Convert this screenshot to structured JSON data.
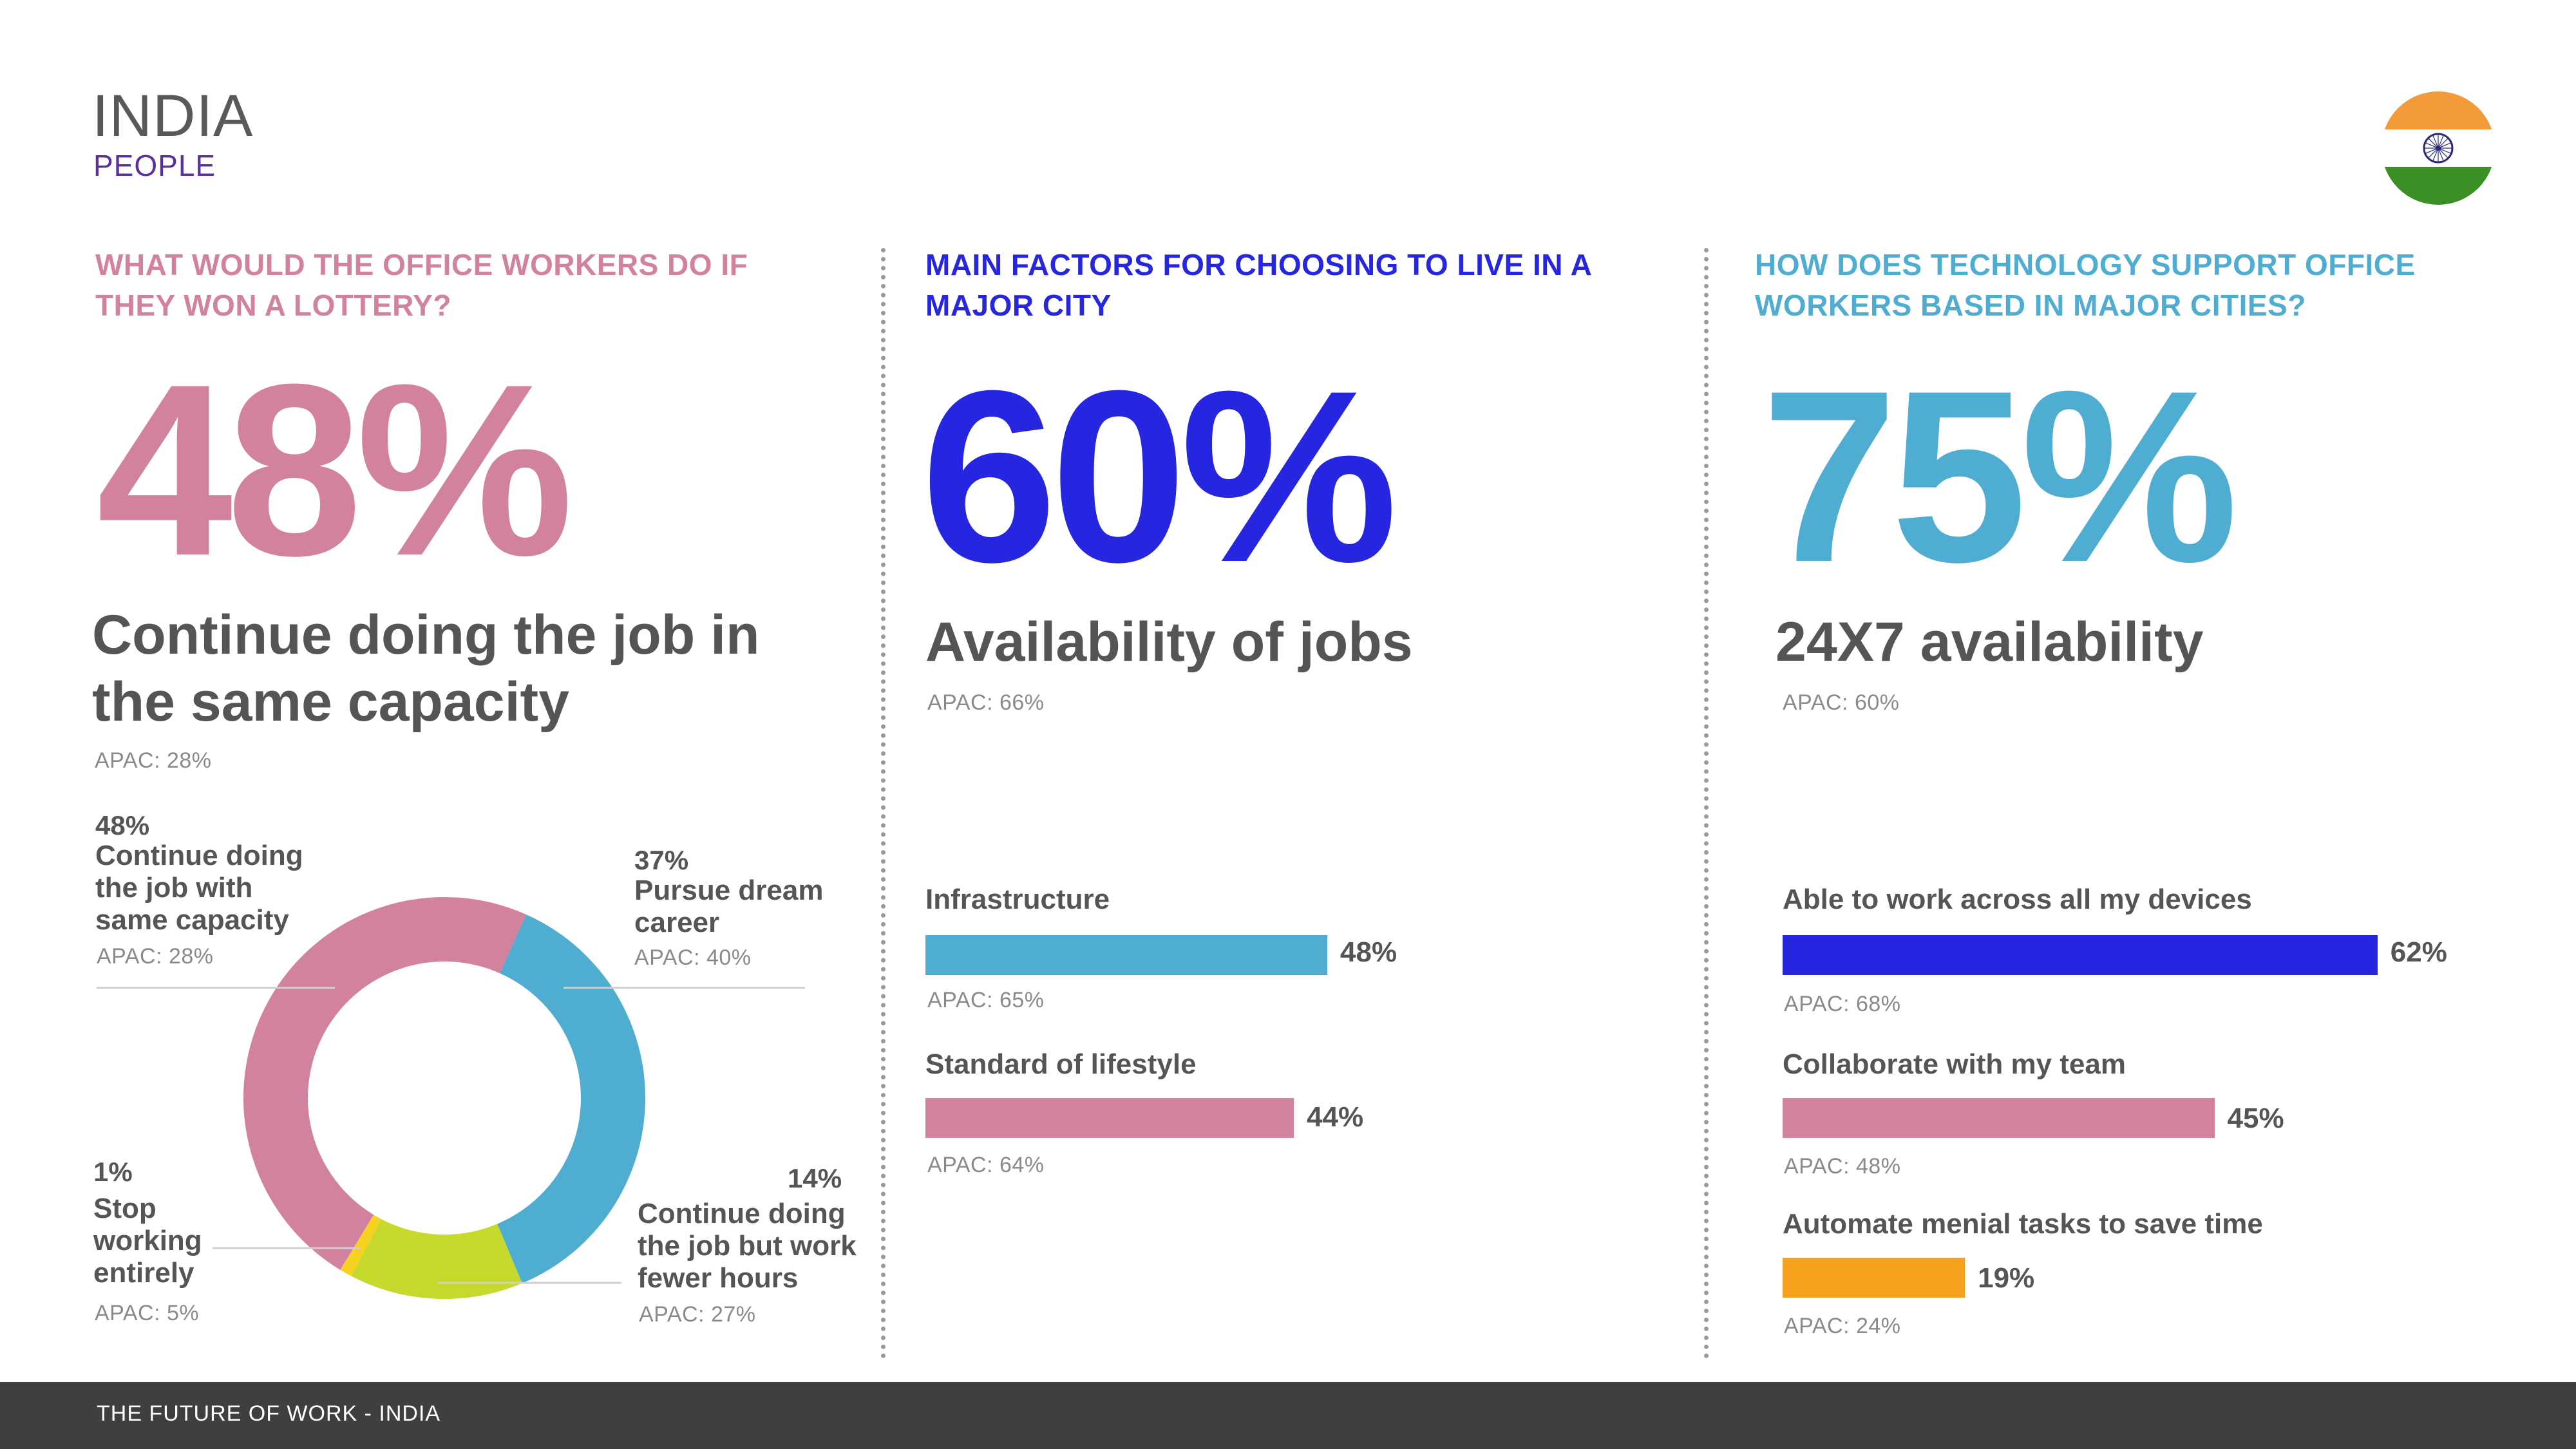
{
  "header": {
    "country": "INDIA",
    "section": "PEOPLE"
  },
  "footer": {
    "text": "THE FUTURE OF WORK - INDIA"
  },
  "colors": {
    "pink": "#d2829e",
    "blue": "#2626e0",
    "light_blue": "#4fadd2",
    "lime": "#c8d92e",
    "yellow": "#f5d21f",
    "orange": "#f7a21e",
    "flag_saffron": "#f39a3b",
    "flag_green": "#3a8f25",
    "flag_chakra": "#2a2a7a"
  },
  "panels": {
    "lottery": {
      "question": "WHAT WOULD THE OFFICE WORKERS DO IF THEY WON A LOTTERY?",
      "big_value": "48%",
      "headline": "Continue doing the job in the same capacity",
      "apac": "APAC: 28%"
    },
    "city": {
      "question": "MAIN FACTORS FOR CHOOSING TO LIVE IN A MAJOR CITY",
      "big_value": "60%",
      "headline": "Availability of jobs",
      "apac": "APAC: 66%"
    },
    "tech": {
      "question": "HOW DOES TECHNOLOGY SUPPORT OFFICE WORKERS BASED IN MAJOR CITIES?",
      "big_value": "75%",
      "headline": "24X7 availability",
      "apac": "APAC: 60%"
    }
  },
  "chart_data": [
    {
      "type": "pie",
      "title": "What would the office workers do if they won a lottery?",
      "slices": [
        {
          "label": "Pursue dream career",
          "value": 37,
          "pct_label": "37%",
          "apac": "APAC: 40%",
          "color": "#4fadd2"
        },
        {
          "label": "Continue doing the job but work fewer hours",
          "value": 14,
          "pct_label": "14%",
          "apac": "APAC: 27%",
          "color": "#c8d92e"
        },
        {
          "label": "Stop working entirely",
          "value": 1,
          "pct_label": "1%",
          "apac": "APAC: 5%",
          "color": "#f5d21f"
        },
        {
          "label": "Continue doing the job with same capacity",
          "value": 48,
          "pct_label": "48%",
          "apac": "APAC: 28%",
          "color": "#d2829e"
        }
      ]
    },
    {
      "type": "bar",
      "orientation": "horizontal",
      "title": "Main factors for choosing to live in a major city",
      "max": 100,
      "bars": [
        {
          "label": "Infrastructure",
          "value": 48,
          "value_label": "48%",
          "apac": "APAC: 65%",
          "color": "#4fadd2"
        },
        {
          "label": "Standard of lifestyle",
          "value": 44,
          "value_label": "44%",
          "apac": "APAC: 64%",
          "color": "#d2829e"
        }
      ]
    },
    {
      "type": "bar",
      "orientation": "horizontal",
      "title": "How does technology support office workers based in major cities?",
      "max": 100,
      "bars": [
        {
          "label": "Able to work across all my devices",
          "value": 62,
          "value_label": "62%",
          "apac": "APAC: 68%",
          "color": "#2626e0"
        },
        {
          "label": "Collaborate with my team",
          "value": 45,
          "value_label": "45%",
          "apac": "APAC: 48%",
          "color": "#d2829e"
        },
        {
          "label": "Automate menial tasks to save time",
          "value": 19,
          "value_label": "19%",
          "apac": "APAC: 24%",
          "color": "#f7a21e"
        }
      ]
    }
  ]
}
